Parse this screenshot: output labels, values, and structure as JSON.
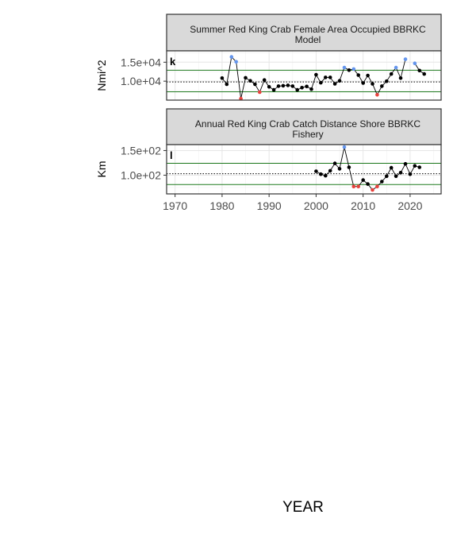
{
  "xlabel": "YEAR",
  "colors": {
    "normal": "#000000",
    "high": "#6495ED",
    "low": "#E8413C",
    "band": "#1f7a1f",
    "strip": "#d9d9d9"
  },
  "chart_data": [
    {
      "type": "line",
      "tag": "k",
      "title_lines": [
        "Summer Red King Crab Female Area Occupied BBRKC",
        "Model"
      ],
      "ylabel": "Nmi^2",
      "yticks": [
        10000,
        15000
      ],
      "ytick_labels": [
        "1.0e+04",
        "1.5e+04"
      ],
      "ylim": [
        5000,
        18000
      ],
      "mean": 9800,
      "upper": 12900,
      "lower": 7200,
      "x": [
        1980,
        1981,
        1982,
        1983,
        1984,
        1985,
        1986,
        1987,
        1988,
        1989,
        1990,
        1991,
        1992,
        1993,
        1994,
        1995,
        1996,
        1997,
        1998,
        1999,
        2000,
        2001,
        2002,
        2003,
        2004,
        2005,
        2006,
        2007,
        2008,
        2009,
        2010,
        2011,
        2012,
        2013,
        2014,
        2015,
        2016,
        2017,
        2018,
        2019,
        2021,
        2022,
        2023
      ],
      "values": [
        10800,
        9200,
        16400,
        15100,
        5400,
        10900,
        10100,
        9200,
        7100,
        10300,
        8500,
        7700,
        8700,
        8800,
        8900,
        8700,
        7700,
        8300,
        8600,
        7900,
        11700,
        9600,
        11000,
        11000,
        9300,
        10100,
        13600,
        12900,
        13200,
        11600,
        9500,
        11500,
        9300,
        6400,
        8700,
        10000,
        11900,
        13600,
        10800,
        15800,
        14700,
        12800,
        11900
      ],
      "segments": [
        [
          1980,
          2019
        ],
        [
          2021,
          2023
        ]
      ]
    },
    {
      "type": "line",
      "tag": "l",
      "title_lines": [
        "Annual Red King Crab Catch Distance Shore BBRKC",
        "Fishery"
      ],
      "ylabel": "Km",
      "yticks": [
        100,
        150
      ],
      "ytick_labels": [
        "1.0e+02",
        "1.5e+02"
      ],
      "ylim": [
        62,
        162
      ],
      "mean": 103,
      "upper": 124,
      "lower": 81,
      "x": [
        2000,
        2001,
        2002,
        2003,
        2004,
        2005,
        2006,
        2007,
        2008,
        2009,
        2010,
        2011,
        2012,
        2013,
        2014,
        2015,
        2016,
        2017,
        2018,
        2019,
        2020,
        2021,
        2022
      ],
      "values": [
        108,
        102,
        99,
        109,
        124,
        113,
        157,
        116,
        77,
        77,
        90,
        82,
        70,
        77,
        87,
        98,
        115,
        98,
        105,
        123,
        102,
        119,
        116
      ],
      "segments": [
        [
          2000,
          2022
        ]
      ]
    }
  ],
  "xaxis": {
    "ticks": [
      1970,
      1980,
      1990,
      2000,
      2010,
      2020
    ],
    "xlim": [
      1968.2,
      2026.6
    ]
  }
}
